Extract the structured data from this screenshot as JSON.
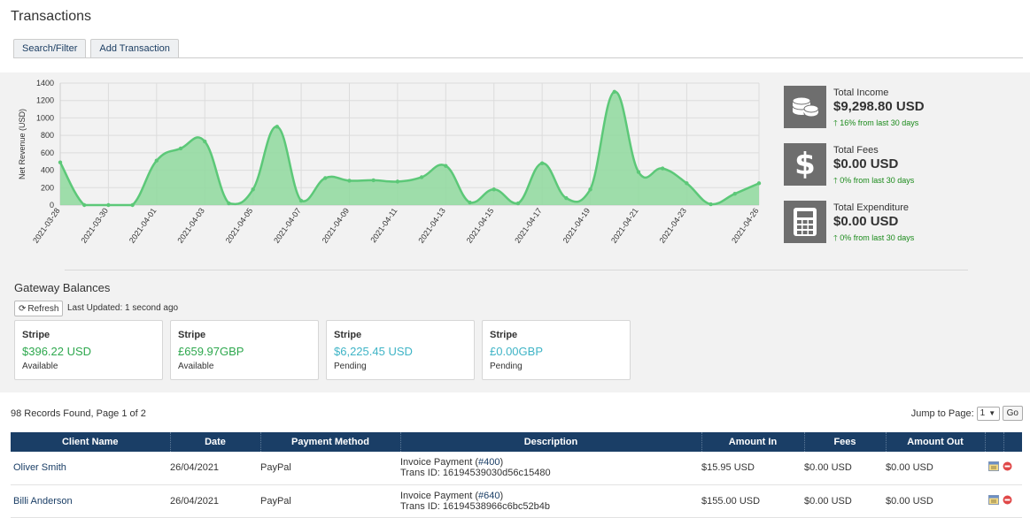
{
  "page": {
    "title": "Transactions"
  },
  "tabs": {
    "search": "Search/Filter",
    "add": "Add Transaction"
  },
  "chart_data": {
    "type": "area",
    "ylabel": "Net Revenue (USD)",
    "ylim": [
      0,
      1400
    ],
    "yticks": [
      0,
      200,
      400,
      600,
      800,
      1000,
      1200,
      1400
    ],
    "x": [
      "2021-03-28",
      "2021-03-29",
      "2021-03-30",
      "2021-03-31",
      "2021-04-01",
      "2021-04-02",
      "2021-04-03",
      "2021-04-04",
      "2021-04-05",
      "2021-04-06",
      "2021-04-07",
      "2021-04-08",
      "2021-04-09",
      "2021-04-10",
      "2021-04-11",
      "2021-04-12",
      "2021-04-13",
      "2021-04-14",
      "2021-04-15",
      "2021-04-16",
      "2021-04-17",
      "2021-04-18",
      "2021-04-19",
      "2021-04-20",
      "2021-04-21",
      "2021-04-22",
      "2021-04-23",
      "2021-04-24",
      "2021-04-25",
      "2021-04-26"
    ],
    "xtick_labels": [
      "2021-03-28",
      "2021-03-30",
      "2021-04-01",
      "2021-04-03",
      "2021-04-05",
      "2021-04-07",
      "2021-04-09",
      "2021-04-11",
      "2021-04-13",
      "2021-04-15",
      "2021-04-17",
      "2021-04-19",
      "2021-04-21",
      "2021-04-23",
      "2021-04-26"
    ],
    "values": [
      490,
      0,
      0,
      0,
      510,
      650,
      730,
      20,
      180,
      900,
      50,
      310,
      280,
      285,
      270,
      320,
      450,
      30,
      180,
      20,
      480,
      80,
      180,
      1300,
      380,
      420,
      250,
      10,
      130,
      250
    ],
    "grid": true,
    "color": "#5cc878",
    "fill": "#8fd99e"
  },
  "stats": [
    {
      "label": "Total Income",
      "value": "$9,298.80 USD",
      "change": "16% from last 30 days",
      "icon": "coins-icon"
    },
    {
      "label": "Total Fees",
      "value": "$0.00 USD",
      "change": "0% from last 30 days",
      "icon": "dollar-icon"
    },
    {
      "label": "Total Expenditure",
      "value": "$0.00 USD",
      "change": "0% from last 30 days",
      "icon": "calculator-icon"
    }
  ],
  "gateway": {
    "title": "Gateway Balances",
    "refresh": "Refresh",
    "updated": "Last Updated: 1 second ago",
    "cards": [
      {
        "name": "Stripe",
        "amount": "$396.22 USD",
        "status": "Available",
        "color": "#2ea84e"
      },
      {
        "name": "Stripe",
        "amount": "£659.97GBP",
        "status": "Available",
        "color": "#2ea84e"
      },
      {
        "name": "Stripe",
        "amount": "$6,225.45 USD",
        "status": "Pending",
        "color": "#3fb4c6"
      },
      {
        "name": "Stripe",
        "amount": "£0.00GBP",
        "status": "Pending",
        "color": "#3fb4c6"
      }
    ]
  },
  "records": {
    "summary": "98 Records Found, Page 1 of 2",
    "jump_label": "Jump to Page:",
    "page_value": "1",
    "go": "Go"
  },
  "table": {
    "headers": [
      "Client Name",
      "Date",
      "Payment Method",
      "Description",
      "Amount In",
      "Fees",
      "Amount Out"
    ],
    "rows": [
      {
        "client": "Oliver Smith",
        "date": "26/04/2021",
        "method": "PayPal",
        "desc_prefix": "Invoice Payment (",
        "invoice": "#400",
        "desc_suffix": ")",
        "trans": "Trans ID: 16194539030d56c15480",
        "in": "$15.95 USD",
        "fees": "$0.00 USD",
        "out": "$0.00 USD"
      },
      {
        "client": "Billi Anderson",
        "date": "26/04/2021",
        "method": "PayPal",
        "desc_prefix": "Invoice Payment (",
        "invoice": "#640",
        "desc_suffix": ")",
        "trans": "Trans ID: 16194538966c6bc52b4b",
        "in": "$155.00 USD",
        "fees": "$0.00 USD",
        "out": "$0.00 USD"
      }
    ]
  }
}
